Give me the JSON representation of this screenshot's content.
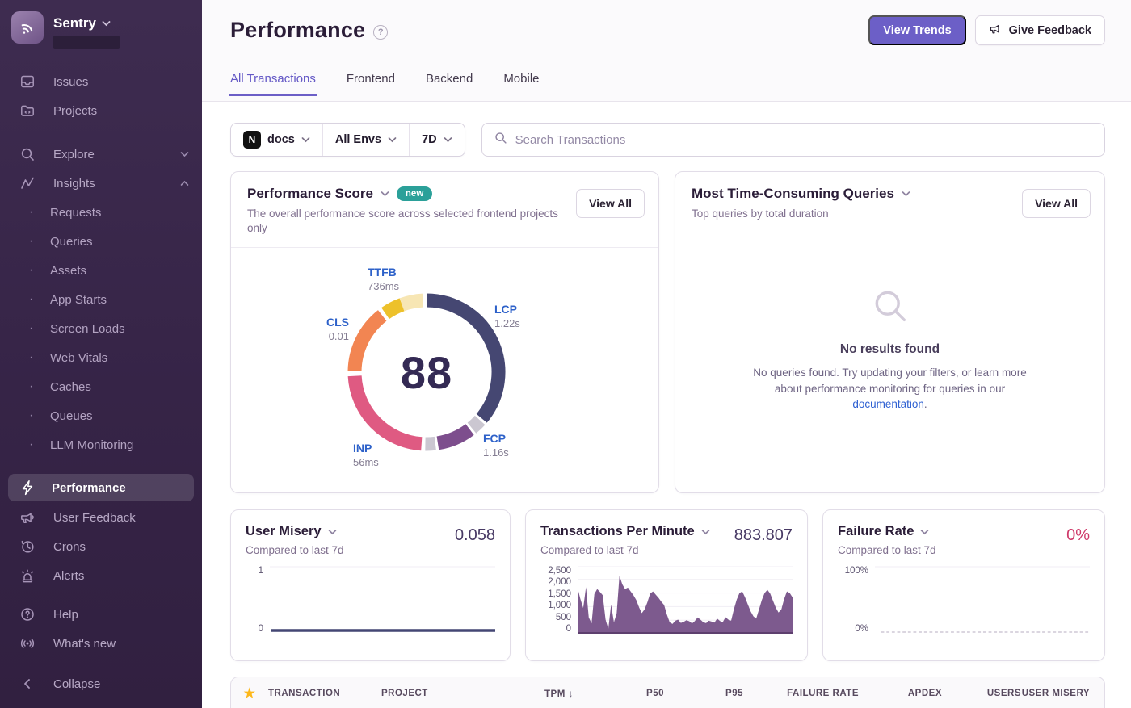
{
  "sidebar": {
    "brand": "Sentry",
    "nav_top": [
      {
        "label": "Issues",
        "icon": "inbox-icon"
      },
      {
        "label": "Projects",
        "icon": "folder-icon"
      }
    ],
    "nav_groups": [
      {
        "label": "Explore",
        "icon": "search-icon",
        "chevron": "down"
      },
      {
        "label": "Insights",
        "icon": "graph-icon",
        "chevron": "up"
      }
    ],
    "insights_children": [
      "Requests",
      "Queries",
      "Assets",
      "App Starts",
      "Screen Loads",
      "Web Vitals",
      "Caches",
      "Queues",
      "LLM Monitoring"
    ],
    "nav_bottom": [
      {
        "label": "Performance",
        "icon": "lightning-icon",
        "active": true
      },
      {
        "label": "User Feedback",
        "icon": "megaphone-icon"
      },
      {
        "label": "Crons",
        "icon": "clock-icon"
      },
      {
        "label": "Alerts",
        "icon": "siren-icon"
      }
    ],
    "nav_meta": [
      {
        "label": "Help",
        "icon": "help-icon"
      },
      {
        "label": "What's new",
        "icon": "broadcast-icon"
      }
    ],
    "collapse_label": "Collapse"
  },
  "header": {
    "title": "Performance",
    "view_trends_label": "View Trends",
    "give_feedback_label": "Give Feedback",
    "tabs": [
      "All Transactions",
      "Frontend",
      "Backend",
      "Mobile"
    ],
    "active_tab": "All Transactions"
  },
  "filters": {
    "project": "docs",
    "project_platform": "N",
    "environment": "All Envs",
    "period": "7D",
    "search_placeholder": "Search Transactions"
  },
  "cards": {
    "performance_score": {
      "title": "Performance Score",
      "badge": "new",
      "view_all_label": "View All",
      "subtitle": "The overall performance score across selected frontend projects only",
      "score": "88",
      "metrics": {
        "ttfb": {
          "label": "TTFB",
          "value": "736ms"
        },
        "lcp": {
          "label": "LCP",
          "value": "1.22s"
        },
        "fcp": {
          "label": "FCP",
          "value": "1.16s"
        },
        "inp": {
          "label": "INP",
          "value": "56ms"
        },
        "cls": {
          "label": "CLS",
          "value": "0.01"
        }
      }
    },
    "queries": {
      "title": "Most Time-Consuming Queries",
      "view_all_label": "View All",
      "subtitle": "Top queries by total duration",
      "empty_title": "No results found",
      "empty_body_1": "No queries found. Try updating your filters, or learn more about performance monitoring for queries in our ",
      "empty_link": "documentation",
      "empty_body_2": "."
    },
    "user_misery": {
      "title": "User Misery",
      "subtitle": "Compared to last 7d",
      "value": "0.058",
      "y_top": "1",
      "y_bottom": "0"
    },
    "tpm": {
      "title": "Transactions Per Minute",
      "subtitle": "Compared to last 7d",
      "value": "883.807",
      "yticks": [
        "2,500",
        "2,000",
        "1,500",
        "1,000",
        "500",
        "0"
      ]
    },
    "failure_rate": {
      "title": "Failure Rate",
      "subtitle": "Compared to last 7d",
      "value": "0%",
      "y_top": "100%",
      "y_bottom": "0%"
    }
  },
  "table": {
    "columns": [
      "TRANSACTION",
      "PROJECT",
      "TPM",
      "P50",
      "P95",
      "FAILURE RATE",
      "APDEX",
      "USERS",
      "USER MISERY"
    ],
    "sorted_column": "TPM",
    "sort_direction": "desc"
  },
  "colors": {
    "accent": "#6C5FC7",
    "badge_teal": "#2ba099",
    "link_blue": "#2f61d2",
    "failure_pink": "#cf3a6a",
    "star_gold": "#fdb81b",
    "sidebar_bg": "#362447"
  },
  "chart_data": [
    {
      "type": "pie",
      "title": "Performance Score",
      "center_score": 88,
      "segments": [
        {
          "label": "LCP",
          "value": "1.22s",
          "color": "#454772",
          "start": 0,
          "end": 130
        },
        {
          "label": "separator",
          "color": "#cbc7d1",
          "start": 132,
          "end": 141
        },
        {
          "label": "FCP",
          "value": "1.16s",
          "color": "#7d4e8d",
          "start": 143,
          "end": 171
        },
        {
          "label": "separator",
          "color": "#cbc7d1",
          "start": 173,
          "end": 181
        },
        {
          "label": "INP",
          "value": "56ms",
          "color": "#df5a82",
          "start": 184,
          "end": 267
        },
        {
          "label": "CLS",
          "value": "0.01",
          "color": "#f28552",
          "start": 271,
          "end": 322
        },
        {
          "label": "TTFB",
          "value": "736ms",
          "color": "#edc12b",
          "start": 325,
          "end": 340
        },
        {
          "label": "TTFB-good",
          "color": "#f7e6b4",
          "start": 340,
          "end": 357
        }
      ]
    },
    {
      "type": "area",
      "title": "Transactions Per Minute",
      "ylim": [
        0,
        2500
      ],
      "yticks": [
        "2,500",
        "2,000",
        "1,500",
        "1,000",
        "500",
        "0"
      ],
      "color": "#7d5a8e",
      "values": [
        1680,
        1280,
        950,
        1720,
        600,
        380,
        1460,
        1650,
        1540,
        1420,
        520,
        180,
        1080,
        420,
        760,
        2140,
        1820,
        1650,
        1700,
        1560,
        1420,
        1240,
        980,
        760,
        900,
        1160,
        1480,
        1560,
        1440,
        1320,
        1180,
        1060,
        700,
        420,
        360,
        480,
        520,
        400,
        440,
        500,
        460,
        380,
        470,
        600,
        520,
        430,
        390,
        480,
        450,
        410,
        560,
        470,
        430,
        610,
        520,
        480,
        900,
        1260,
        1500,
        1560,
        1340,
        1080,
        820,
        640,
        560,
        900,
        1240,
        1500,
        1620,
        1480,
        1220,
        960,
        780,
        900,
        1280,
        1560,
        1500,
        1340
      ]
    },
    {
      "type": "line",
      "title": "User Misery",
      "ylim": [
        0,
        1
      ],
      "yticks": [
        "1",
        "0"
      ],
      "color": "#444674",
      "values": [
        0.03,
        0.03
      ]
    },
    {
      "type": "line",
      "title": "Failure Rate",
      "ylim": [
        0,
        1
      ],
      "yticks": [
        "100%",
        "0%"
      ],
      "color": "#cfc9d6",
      "dashed": true,
      "values": [
        0,
        0
      ]
    }
  ]
}
